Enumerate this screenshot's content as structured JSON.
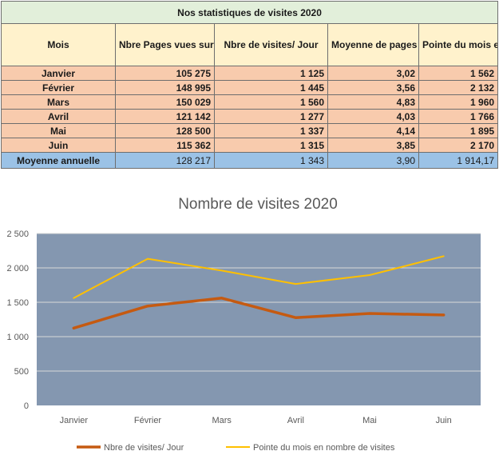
{
  "table": {
    "title": "Nos statistiques de visites 2020",
    "headers": [
      "Mois",
      "Nbre Pages vues sur le mois",
      "Nbre de visites/ Jour",
      "Moyenne de pages vues par visites",
      "Pointe du mois en nombre de visites"
    ],
    "rows": [
      [
        "Janvier",
        "105 275",
        "1 125",
        "3,02",
        "1 562"
      ],
      [
        "Février",
        "148 995",
        "1 445",
        "3,56",
        "2 132"
      ],
      [
        "Mars",
        "150 029",
        "1 560",
        "4,83",
        "1 960"
      ],
      [
        "Avril",
        "121 142",
        "1 277",
        "4,03",
        "1 766"
      ],
      [
        "Mai",
        "128 500",
        "1 337",
        "4,14",
        "1 895"
      ],
      [
        "Juin",
        "115 362",
        "1 315",
        "3,85",
        "2 170"
      ]
    ],
    "average": [
      "Moyenne annuelle",
      "128 217",
      "1 343",
      "3,90",
      "1 914,17"
    ]
  },
  "chart_data": {
    "type": "line",
    "title": "Nombre de visites 2020",
    "categories": [
      "Janvier",
      "Février",
      "Mars",
      "Avril",
      "Mai",
      "Juin"
    ],
    "series": [
      {
        "name": "Nbre de visites/ Jour",
        "values": [
          1125,
          1445,
          1560,
          1277,
          1337,
          1315
        ],
        "color": "#c55a11"
      },
      {
        "name": "Pointe du mois en nombre de visites",
        "values": [
          1562,
          2132,
          1960,
          1766,
          1895,
          2170
        ],
        "color": "#ffc000"
      }
    ],
    "ylim": [
      0,
      2500
    ],
    "yticks": [
      0,
      500,
      1000,
      1500,
      2000,
      2500
    ],
    "ytick_labels": [
      "0",
      "500",
      "1 000",
      "1 500",
      "2 000",
      "2 500"
    ],
    "plot_background": "#8497b0",
    "grid": true,
    "legend_position": "bottom"
  }
}
